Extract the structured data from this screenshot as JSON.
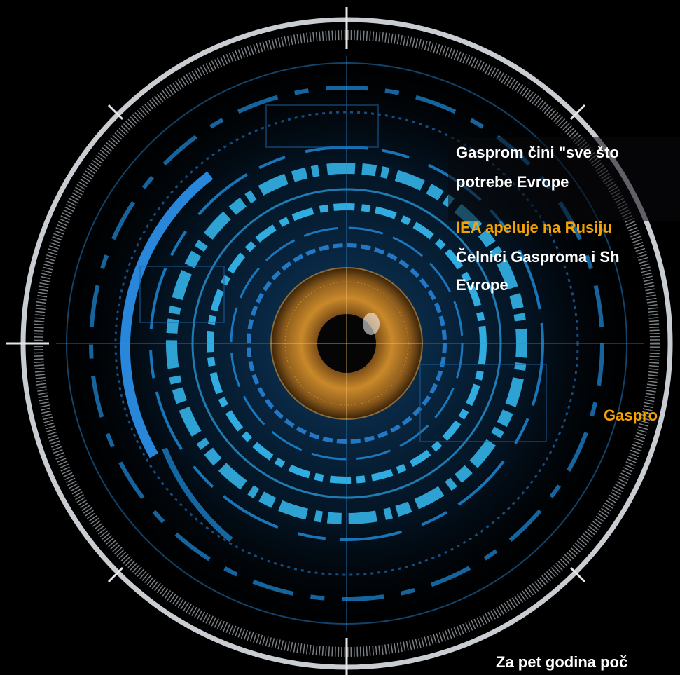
{
  "colors": {
    "background": "#000000",
    "text_white": "#ffffff",
    "text_orange": "#f5a300",
    "ring_silver": "#c9cdd2",
    "hud_blue": "#1e8fe0",
    "hud_cyan": "#39c6ff",
    "iris_amber": "#c9892a"
  },
  "icons": {
    "eye": "eye-icon",
    "hud": "targeting-reticle-icon"
  },
  "headlines": [
    {
      "line1": "Gasprom čini \"sve što",
      "line2": "potrebe Evrope"
    },
    {
      "line1": "IEA apeluje na Rusiju"
    },
    {
      "line1": "Čelnici Gasproma i Sh",
      "line2": "Evrope"
    },
    {
      "line1": "Gaspro"
    },
    {
      "line1": "Za pet godina poč"
    }
  ]
}
